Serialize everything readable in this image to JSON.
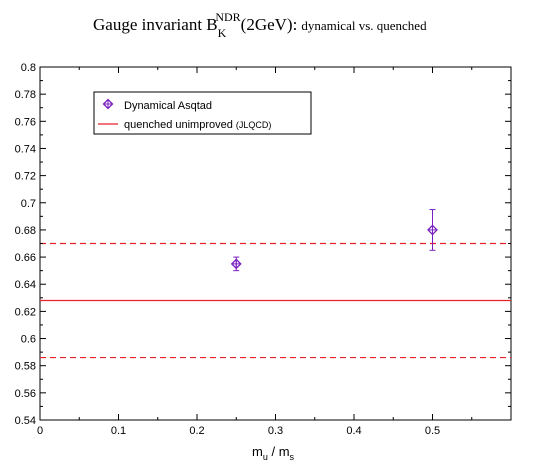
{
  "chart_data": {
    "type": "scatter",
    "title": {
      "main": "Gauge invariant B",
      "sup": "NDR",
      "sub": "K",
      "paren": "(2GeV):",
      "suffix": "dynamical vs. quenched"
    },
    "xlabel": {
      "m1": "m",
      "s1": "u",
      "slash": " / ",
      "m2": "m",
      "s2": "s"
    },
    "xlim": [
      0,
      0.6
    ],
    "ylim": [
      0.54,
      0.8
    ],
    "xticks": [
      "0",
      "0.1",
      "0.2",
      "0.3",
      "0.4",
      "0.5"
    ],
    "yticks": [
      "0.54",
      "0.56",
      "0.58",
      "0.6",
      "0.62",
      "0.64",
      "0.66",
      "0.68",
      "0.7",
      "0.72",
      "0.74",
      "0.76",
      "0.78",
      "0.8"
    ],
    "series": [
      {
        "name": "Dynamical Asqtad",
        "color": "#7a1fc0",
        "points": [
          {
            "x": 0.25,
            "y": 0.655,
            "err": 0.005
          },
          {
            "x": 0.5,
            "y": 0.68,
            "err": 0.015
          }
        ]
      }
    ],
    "reference": {
      "name": "quenched unimproved",
      "name_tag": "(JLQCD)",
      "color": "#e8202a",
      "value": 0.628,
      "band": [
        0.586,
        0.67
      ]
    },
    "legend_position": "top-left",
    "grid": false
  }
}
